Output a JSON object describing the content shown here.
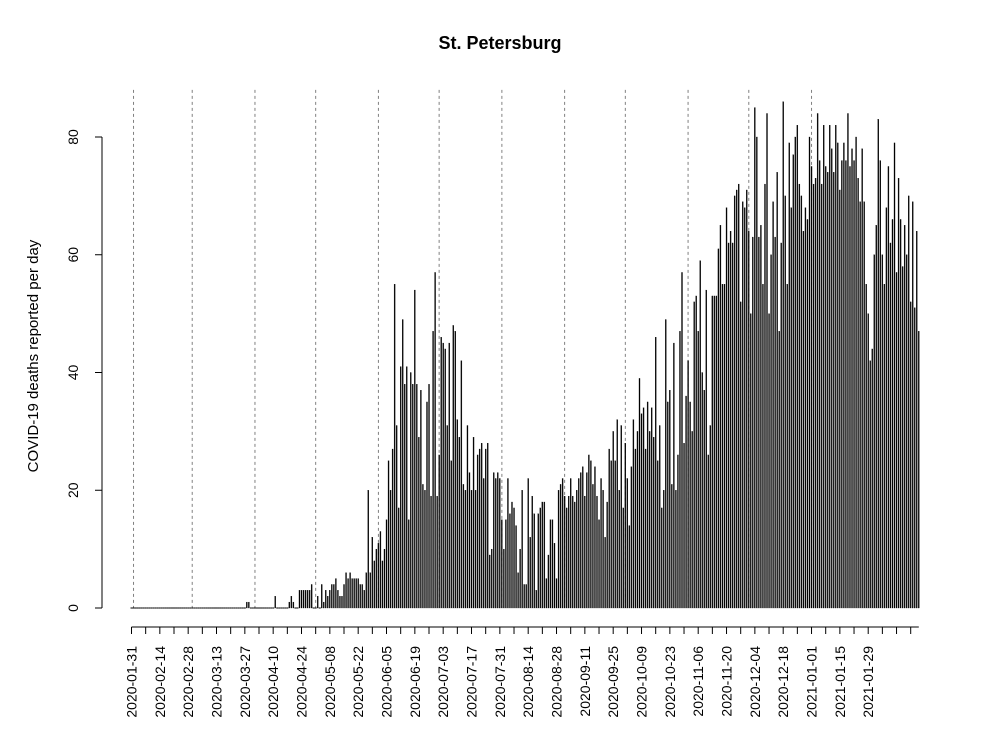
{
  "chart_data": {
    "type": "bar",
    "title": "St. Petersburg",
    "ylabel": "COVID-19 deaths reported per day",
    "xlabel": "",
    "start_date": "2020-01-31",
    "end_date": "2021-01-29",
    "ylim": [
      0,
      88
    ],
    "y_ticks": [
      0,
      20,
      40,
      60,
      80
    ],
    "x_tick_labels": [
      "2020-01-31",
      "2020-02-14",
      "2020-02-28",
      "2020-03-13",
      "2020-03-27",
      "2020-04-10",
      "2020-04-24",
      "2020-05-08",
      "2020-05-22",
      "2020-06-05",
      "2020-06-19",
      "2020-07-03",
      "2020-07-17",
      "2020-07-31",
      "2020-08-14",
      "2020-08-28",
      "2020-09-11",
      "2020-09-25",
      "2020-10-09",
      "2020-10-23",
      "2020-11-06",
      "2020-11-20",
      "2020-12-04",
      "2020-12-18",
      "2021-01-01",
      "2021-01-15",
      "2021-01-29"
    ],
    "month_starts": [
      "2020-02-01",
      "2020-03-01",
      "2020-04-01",
      "2020-05-01",
      "2020-06-01",
      "2020-07-01",
      "2020-08-01",
      "2020-09-01",
      "2020-10-01",
      "2020-11-01",
      "2020-12-01",
      "2021-01-01"
    ],
    "grid": "vertical dotted at month starts",
    "values": [
      0,
      0,
      0,
      0,
      0,
      0,
      0,
      0,
      0,
      0,
      0,
      0,
      0,
      0,
      0,
      0,
      0,
      0,
      0,
      0,
      0,
      0,
      0,
      0,
      0,
      0,
      0,
      0,
      0,
      0,
      0,
      0,
      0,
      0,
      0,
      0,
      0,
      0,
      0,
      0,
      0,
      0,
      0,
      0,
      0,
      0,
      0,
      0,
      0,
      0,
      0,
      0,
      0,
      0,
      0,
      0,
      0,
      1,
      1,
      0,
      0,
      0,
      0,
      0,
      0,
      0,
      0,
      0,
      0,
      0,
      0,
      2,
      0,
      0,
      0,
      0,
      0,
      0,
      1,
      2,
      1,
      0,
      0,
      3,
      3,
      3,
      3,
      3,
      3,
      4,
      0,
      0,
      2,
      0,
      4,
      1,
      3,
      2,
      3,
      4,
      4,
      5,
      3,
      2,
      2,
      4,
      6,
      5,
      6,
      5,
      5,
      5,
      5,
      4,
      4,
      3,
      6,
      20,
      6,
      12,
      8,
      10,
      11,
      13,
      8,
      10,
      15,
      25,
      20,
      27,
      55,
      31,
      17,
      41,
      49,
      38,
      41,
      15,
      40,
      38,
      54,
      38,
      29,
      37,
      21,
      20,
      35,
      38,
      19,
      47,
      57,
      19,
      26,
      46,
      45,
      44,
      31,
      45,
      25,
      48,
      47,
      32,
      29,
      42,
      21,
      20,
      31,
      23,
      20,
      29,
      20,
      26,
      27,
      28,
      22,
      27,
      28,
      9,
      10,
      23,
      22,
      23,
      22,
      15,
      10,
      15,
      22,
      16,
      18,
      17,
      14,
      6,
      10,
      20,
      4,
      4,
      22,
      12,
      19,
      16,
      3,
      16,
      17,
      18,
      18,
      5,
      9,
      15,
      15,
      11,
      5,
      20,
      21,
      22,
      19,
      17,
      19,
      22,
      19,
      18,
      20,
      22,
      23,
      24,
      19,
      23,
      26,
      25,
      21,
      24,
      19,
      15,
      22,
      20,
      12,
      18,
      27,
      25,
      30,
      25,
      32,
      20,
      31,
      17,
      28,
      22,
      14,
      24,
      32,
      27,
      30,
      39,
      33,
      34,
      27,
      35,
      30,
      34,
      29,
      46,
      25,
      31,
      17,
      20,
      49,
      35,
      37,
      21,
      45,
      20,
      26,
      47,
      57,
      28,
      36,
      42,
      35,
      30,
      52,
      53,
      47,
      59,
      40,
      37,
      54,
      26,
      31,
      53,
      53,
      53,
      61,
      65,
      55,
      55,
      68,
      62,
      64,
      62,
      70,
      71,
      72,
      52,
      69,
      68,
      71,
      64,
      50,
      63,
      85,
      80,
      63,
      65,
      55,
      72,
      84,
      50,
      60,
      69,
      63,
      74,
      47,
      62,
      86,
      70,
      55,
      79,
      68,
      77,
      80,
      82,
      72,
      70,
      64,
      68,
      66,
      80,
      75,
      72,
      73,
      84,
      76,
      72,
      82,
      75,
      74,
      82,
      78,
      74,
      82,
      79,
      71,
      76,
      79,
      76,
      84,
      75,
      78,
      76,
      80,
      73,
      69,
      78,
      69,
      55,
      50,
      42,
      44,
      60,
      65,
      83,
      76,
      60,
      55,
      68,
      75,
      62,
      66,
      79,
      57,
      73,
      66,
      58,
      65,
      60,
      70,
      52,
      69,
      51,
      64,
      47
    ]
  }
}
